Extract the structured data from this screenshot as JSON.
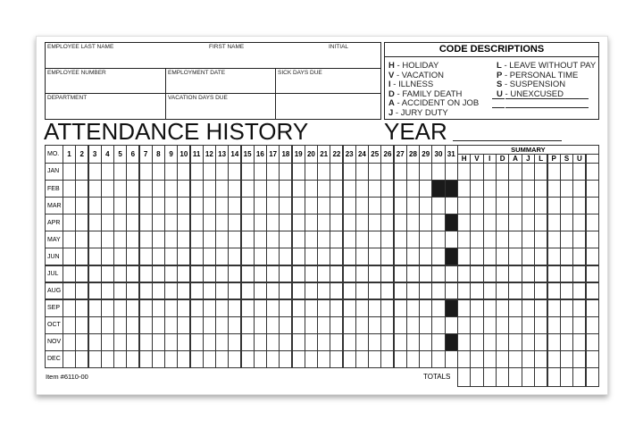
{
  "employee_fields": {
    "last_name": "EMPLOYEE LAST NAME",
    "first_name": "FIRST NAME",
    "initial": "INITIAL",
    "employee_number": "EMPLOYEE NUMBER",
    "employment_date": "EMPLOYMENT DATE",
    "sick_days_due": "SICK DAYS DUE",
    "department": "DEPARTMENT",
    "vacation_days_due": "VACATION DAYS DUE"
  },
  "codes": {
    "title": "CODE DESCRIPTIONS",
    "items": [
      {
        "code": "H",
        "desc": "HOLIDAY"
      },
      {
        "code": "V",
        "desc": "VACATION"
      },
      {
        "code": "I",
        "desc": "ILLNESS"
      },
      {
        "code": "D",
        "desc": "FAMILY DEATH"
      },
      {
        "code": "A",
        "desc": "ACCIDENT ON JOB"
      },
      {
        "code": "J",
        "desc": "JURY DUTY"
      },
      {
        "code": "L",
        "desc": "LEAVE WITHOUT PAY"
      },
      {
        "code": "P",
        "desc": "PERSONAL TIME"
      },
      {
        "code": "S",
        "desc": "SUSPENSION"
      },
      {
        "code": "U",
        "desc": "UNEXCUSED"
      }
    ]
  },
  "title": "ATTENDANCE HISTORY",
  "year_label": "YEAR",
  "grid": {
    "mo_label": "MO.",
    "days": [
      "1",
      "2",
      "3",
      "4",
      "5",
      "6",
      "7",
      "8",
      "9",
      "10",
      "11",
      "12",
      "13",
      "14",
      "15",
      "16",
      "17",
      "18",
      "19",
      "20",
      "21",
      "22",
      "23",
      "24",
      "25",
      "26",
      "27",
      "28",
      "29",
      "30",
      "31"
    ],
    "months": [
      "JAN",
      "FEB",
      "MAR",
      "APR",
      "MAY",
      "JUN",
      "JUL",
      "AUG",
      "SEP",
      "OCT",
      "NOV",
      "DEC"
    ],
    "blocked_days": {
      "FEB": [
        30,
        31
      ],
      "APR": [
        31
      ],
      "JUN": [
        31
      ],
      "SEP": [
        31
      ],
      "NOV": [
        31
      ]
    },
    "summary_label": "SUMMARY",
    "summary_cols": [
      "H",
      "V",
      "I",
      "D",
      "A",
      "J",
      "L",
      "P",
      "S",
      "U",
      ""
    ],
    "totals_label": "TOTALS"
  },
  "item_number": "Item #6110-00"
}
